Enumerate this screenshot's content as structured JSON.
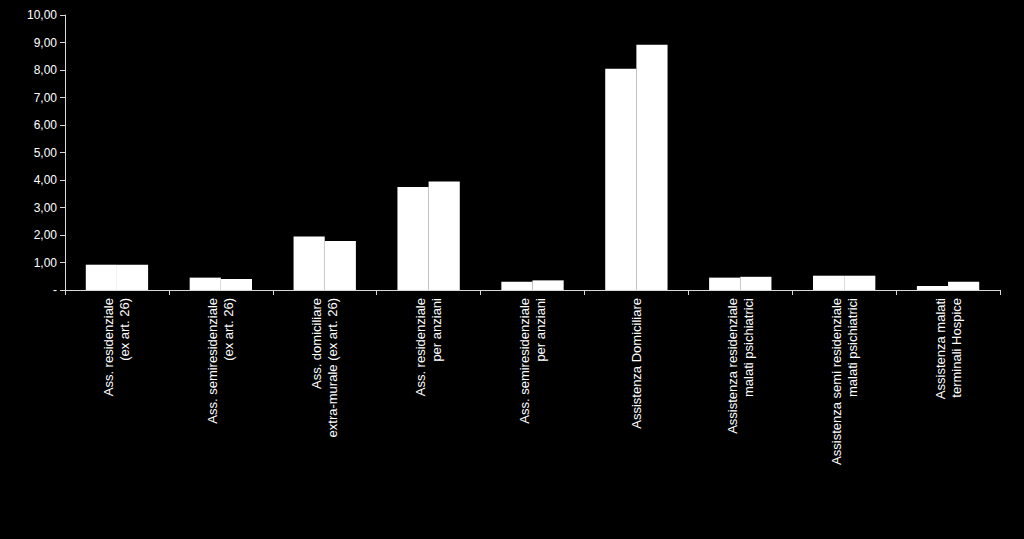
{
  "chart_data": {
    "type": "bar",
    "categories": [
      "Ass. residenziale\n(ex art. 26)",
      "Ass. semiresidenziale\n(ex art. 26)",
      "Ass. domiciliare\nextra-murale (ex art. 26)",
      "Ass. residenziale\nper anziani",
      "Ass. semiresidenziale\nper anziani",
      "Assistenza Domiciliare",
      "Assistenza residenziale\nmalati psichiatrici",
      "Assistenza semi residenziale\nmalati psichiatrici",
      "Assistenza malati\nterminali Hospice"
    ],
    "series": [
      {
        "color": "#ffffff",
        "values": [
          0.92,
          0.45,
          1.95,
          3.75,
          0.3,
          8.05,
          0.45,
          0.52,
          0.15
        ]
      },
      {
        "color": "#ffffff",
        "values": [
          0.92,
          0.4,
          1.78,
          3.95,
          0.35,
          8.92,
          0.48,
          0.52,
          0.3
        ]
      }
    ],
    "ylim": [
      0,
      10
    ],
    "yticks": [
      {
        "value": 0,
        "label": "-"
      },
      {
        "value": 1,
        "label": "1,00"
      },
      {
        "value": 2,
        "label": "2,00"
      },
      {
        "value": 3,
        "label": "3,00"
      },
      {
        "value": 4,
        "label": "4,00"
      },
      {
        "value": 5,
        "label": "5,00"
      },
      {
        "value": 6,
        "label": "6,00"
      },
      {
        "value": 7,
        "label": "7,00"
      },
      {
        "value": 8,
        "label": "8,00"
      },
      {
        "value": 9,
        "label": "9,00"
      },
      {
        "value": 10,
        "label": "10,00"
      }
    ],
    "grid": false
  }
}
